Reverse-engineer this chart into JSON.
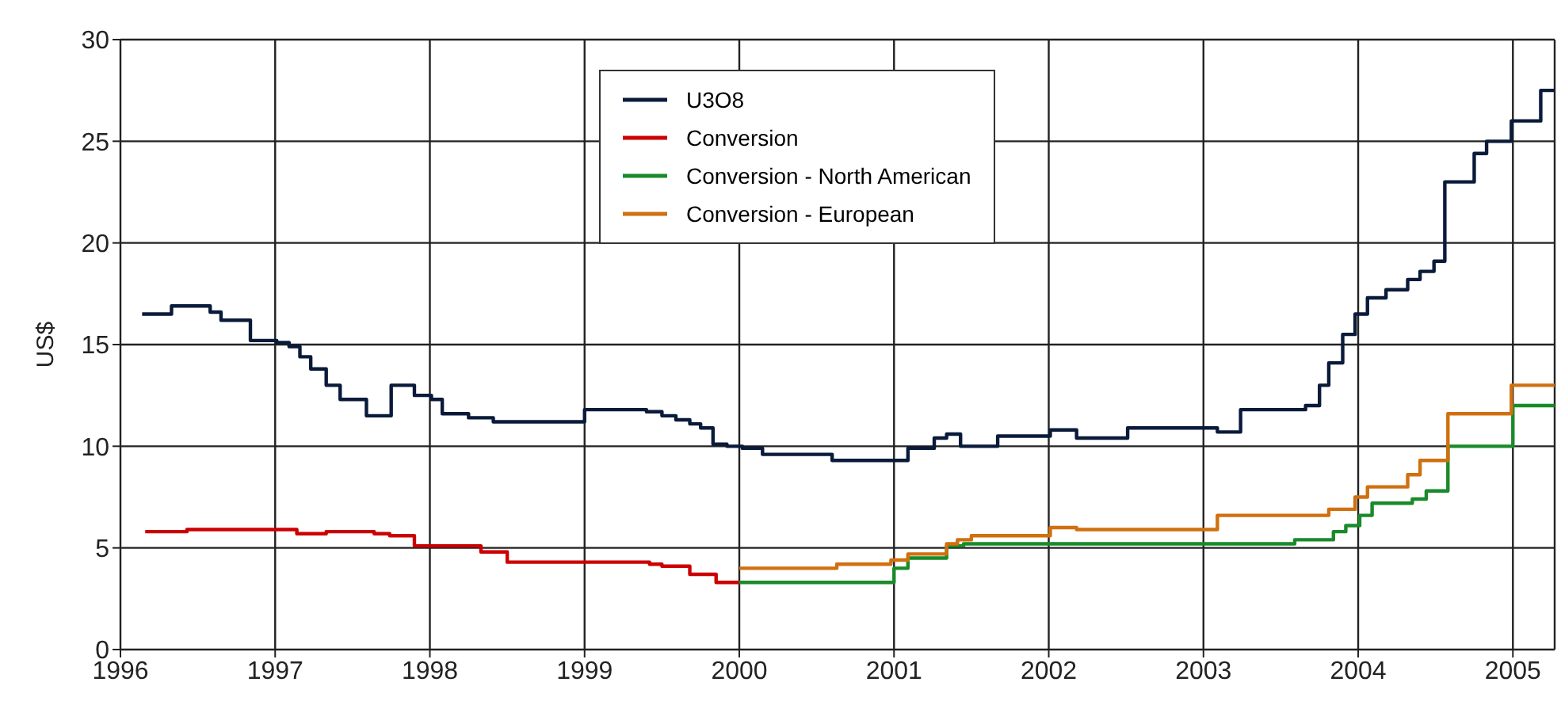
{
  "chart_data": {
    "type": "step",
    "ylabel": "US$",
    "xlim": [
      1996,
      2005.27
    ],
    "xticks": [
      1996,
      1997,
      1998,
      1999,
      2000,
      2001,
      2002,
      2003,
      2004,
      2005
    ],
    "ylim": [
      0,
      30
    ],
    "yticks": [
      0,
      5,
      10,
      15,
      20,
      25,
      30
    ],
    "grid": true,
    "legend": "top",
    "line_style": "solid",
    "marker": "none",
    "series": [
      {
        "name": "U3O8",
        "color": "#0a1a3a",
        "x": [
          1996.14,
          1996.33,
          1996.58,
          1996.65,
          1996.84,
          1997.01,
          1997.09,
          1997.16,
          1997.23,
          1997.33,
          1997.42,
          1997.59,
          1997.75,
          1997.9,
          1998.01,
          1998.08,
          1998.25,
          1998.41,
          1999.0,
          1999.4,
          1999.5,
          1999.59,
          1999.68,
          1999.75,
          1999.83,
          1999.92,
          2000.02,
          2000.15,
          2000.6,
          2001.09,
          2001.26,
          2001.34,
          2001.43,
          2001.67,
          2002.01,
          2002.18,
          2002.51,
          2003.09,
          2003.24,
          2003.66,
          2003.75,
          2003.81,
          2003.9,
          2003.98,
          2004.06,
          2004.18,
          2004.32,
          2004.4,
          2004.49,
          2004.56,
          2004.75,
          2004.83,
          2004.99,
          2005.18,
          2005.27
        ],
        "values": [
          16.5,
          16.9,
          16.6,
          16.2,
          15.2,
          15.1,
          14.9,
          14.4,
          13.8,
          13.0,
          12.3,
          11.5,
          13.0,
          12.5,
          12.3,
          11.6,
          11.4,
          11.2,
          11.8,
          11.7,
          11.5,
          11.3,
          11.1,
          10.9,
          10.1,
          10.0,
          9.9,
          9.6,
          9.3,
          9.9,
          10.4,
          10.6,
          10.0,
          10.5,
          10.8,
          10.4,
          10.9,
          10.7,
          11.8,
          12.0,
          13.0,
          14.1,
          15.5,
          16.5,
          17.3,
          17.7,
          18.2,
          18.6,
          19.1,
          23.0,
          24.4,
          25.0,
          26.0,
          27.5,
          27.5
        ]
      },
      {
        "name": "Conversion",
        "color": "#cc0000",
        "x": [
          1996.16,
          1996.43,
          1997.14,
          1997.33,
          1997.64,
          1997.74,
          1997.9,
          1998.33,
          1998.5,
          1999.42,
          1999.5,
          1999.68,
          1999.85,
          2000.0
        ],
        "values": [
          5.8,
          5.9,
          5.7,
          5.8,
          5.7,
          5.6,
          5.1,
          4.8,
          4.3,
          4.2,
          4.1,
          3.7,
          3.3,
          3.3
        ]
      },
      {
        "name": "Conversion - North American",
        "color": "#1a8a2a",
        "x": [
          2000.0,
          2001.0,
          2001.09,
          2001.34,
          2001.45,
          2003.59,
          2003.84,
          2003.92,
          2004.01,
          2004.09,
          2004.35,
          2004.44,
          2004.58,
          2005.0,
          2005.27
        ],
        "values": [
          3.3,
          4.0,
          4.5,
          5.1,
          5.2,
          5.4,
          5.8,
          6.1,
          6.6,
          7.2,
          7.4,
          7.8,
          10.0,
          12.0,
          12.0
        ]
      },
      {
        "name": "Conversion - European",
        "color": "#d07010",
        "x": [
          2000.0,
          2000.63,
          2000.98,
          2001.09,
          2001.34,
          2001.41,
          2001.5,
          2002.01,
          2002.18,
          2003.09,
          2003.81,
          2003.98,
          2004.06,
          2004.32,
          2004.4,
          2004.58,
          2004.99,
          2005.27
        ],
        "values": [
          4.0,
          4.2,
          4.4,
          4.7,
          5.2,
          5.4,
          5.6,
          6.0,
          5.9,
          6.6,
          6.9,
          7.5,
          8.0,
          8.6,
          9.3,
          11.6,
          13.0,
          13.0
        ]
      }
    ]
  }
}
